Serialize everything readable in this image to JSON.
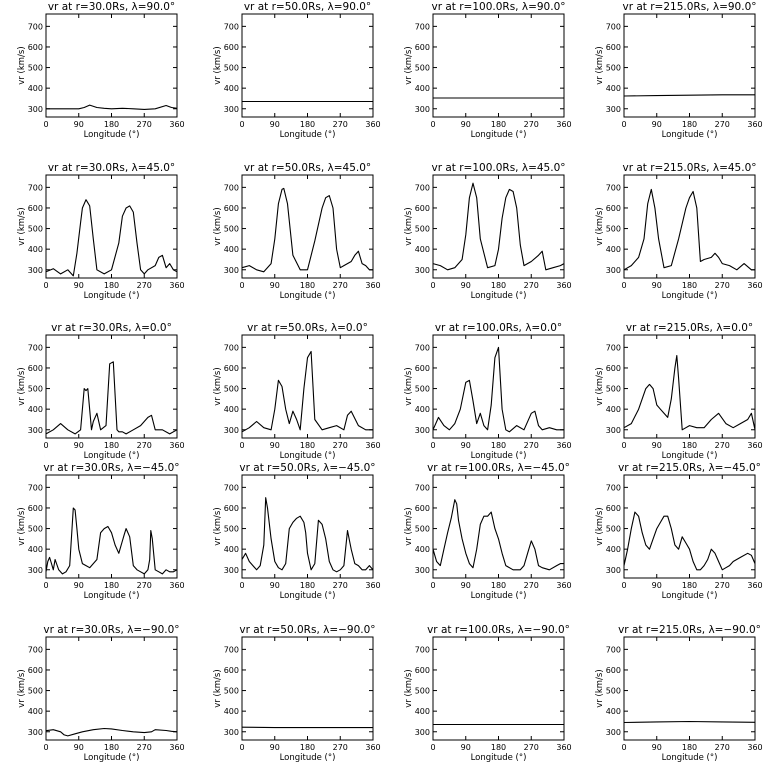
{
  "chart_data": {
    "type": "line",
    "xlabel": "Longitude (°)",
    "ylabel": "vr (km/s)",
    "xlim": [
      0,
      360
    ],
    "ylim": [
      260,
      760
    ],
    "xticks": [
      "0",
      "90",
      "180",
      "270",
      "360"
    ],
    "yticks": [
      "300",
      "400",
      "500",
      "600",
      "700"
    ],
    "grid": false,
    "panels": [
      {
        "title": "vr at r=30.0Rs, λ=90.0°",
        "x": [
          0,
          45,
          90,
          105,
          120,
          140,
          160,
          180,
          210,
          240,
          270,
          300,
          330,
          345,
          360
        ],
        "y": [
          300,
          300,
          300,
          306,
          318,
          306,
          302,
          300,
          302,
          300,
          297,
          300,
          316,
          306,
          302
        ]
      },
      {
        "title": "vr at r=50.0Rs, λ=90.0°",
        "x": [
          0,
          90,
          180,
          270,
          360
        ],
        "y": [
          335,
          335,
          335,
          335,
          335
        ]
      },
      {
        "title": "vr at r=100.0Rs, λ=90.0°",
        "x": [
          0,
          90,
          180,
          270,
          360
        ],
        "y": [
          352,
          352,
          352,
          352,
          352
        ]
      },
      {
        "title": "vr at r=215.0Rs, λ=90.0°",
        "x": [
          0,
          90,
          180,
          270,
          360
        ],
        "y": [
          362,
          364,
          366,
          368,
          368
        ]
      },
      {
        "title": "vr at r=30.0Rs, λ=45.0°",
        "x": [
          0,
          20,
          40,
          60,
          75,
          85,
          95,
          100,
          110,
          120,
          130,
          140,
          160,
          180,
          200,
          210,
          220,
          230,
          240,
          250,
          260,
          270,
          280,
          300,
          310,
          320,
          330,
          340,
          350,
          360
        ],
        "y": [
          290,
          305,
          280,
          300,
          270,
          380,
          530,
          600,
          640,
          610,
          450,
          300,
          280,
          300,
          430,
          560,
          600,
          610,
          580,
          430,
          300,
          280,
          300,
          320,
          360,
          370,
          310,
          330,
          300,
          290
        ]
      },
      {
        "title": "vr at r=50.0Rs, λ=45.0°",
        "x": [
          0,
          20,
          40,
          60,
          80,
          90,
          100,
          110,
          115,
          125,
          140,
          160,
          180,
          200,
          220,
          230,
          240,
          250,
          260,
          270,
          280,
          300,
          310,
          320,
          330,
          340,
          350,
          360
        ],
        "y": [
          310,
          320,
          300,
          290,
          330,
          450,
          620,
          690,
          695,
          620,
          370,
          300,
          300,
          440,
          600,
          650,
          660,
          600,
          400,
          310,
          320,
          340,
          370,
          390,
          330,
          320,
          300,
          300
        ]
      },
      {
        "title": "vr at r=100.0Rs, λ=45.0°",
        "x": [
          0,
          20,
          40,
          60,
          80,
          90,
          100,
          110,
          120,
          130,
          150,
          170,
          180,
          190,
          200,
          210,
          220,
          230,
          240,
          250,
          270,
          290,
          300,
          310,
          330,
          350,
          360
        ],
        "y": [
          330,
          320,
          300,
          310,
          350,
          470,
          650,
          720,
          650,
          450,
          310,
          320,
          400,
          550,
          650,
          690,
          680,
          600,
          420,
          320,
          340,
          370,
          390,
          300,
          310,
          320,
          330
        ]
      },
      {
        "title": "vr at r=215.0Rs, λ=45.0°",
        "x": [
          0,
          20,
          40,
          55,
          65,
          75,
          85,
          95,
          110,
          130,
          150,
          170,
          180,
          190,
          200,
          210,
          220,
          240,
          250,
          260,
          270,
          290,
          310,
          330,
          350,
          360
        ],
        "y": [
          300,
          320,
          360,
          450,
          620,
          690,
          600,
          450,
          310,
          320,
          450,
          600,
          650,
          680,
          600,
          340,
          350,
          360,
          380,
          360,
          330,
          320,
          300,
          330,
          300,
          300
        ]
      },
      {
        "title": "vr at r=30.0Rs, λ=0.0°",
        "x": [
          0,
          20,
          40,
          60,
          80,
          95,
          105,
          110,
          115,
          125,
          130,
          140,
          150,
          165,
          175,
          185,
          195,
          200,
          210,
          220,
          240,
          260,
          280,
          290,
          300,
          320,
          340,
          360
        ],
        "y": [
          280,
          300,
          330,
          300,
          280,
          300,
          500,
          490,
          500,
          300,
          340,
          380,
          300,
          320,
          620,
          630,
          300,
          290,
          290,
          280,
          300,
          320,
          360,
          370,
          300,
          300,
          280,
          300
        ]
      },
      {
        "title": "vr at r=50.0Rs, λ=0.0°",
        "x": [
          0,
          20,
          40,
          60,
          80,
          90,
          100,
          110,
          120,
          130,
          140,
          150,
          160,
          170,
          180,
          190,
          200,
          220,
          240,
          260,
          280,
          290,
          300,
          320,
          340,
          360
        ],
        "y": [
          290,
          310,
          340,
          310,
          300,
          400,
          540,
          510,
          400,
          330,
          390,
          350,
          300,
          500,
          650,
          680,
          350,
          300,
          310,
          320,
          300,
          370,
          390,
          320,
          300,
          300
        ]
      },
      {
        "title": "vr at r=100.0Rs, λ=0.0°",
        "x": [
          0,
          15,
          30,
          45,
          60,
          75,
          90,
          100,
          110,
          120,
          130,
          140,
          150,
          160,
          170,
          180,
          190,
          200,
          210,
          230,
          250,
          270,
          280,
          290,
          300,
          320,
          340,
          360
        ],
        "y": [
          300,
          360,
          320,
          300,
          330,
          400,
          530,
          540,
          440,
          330,
          380,
          320,
          300,
          420,
          650,
          700,
          400,
          300,
          290,
          320,
          300,
          380,
          390,
          320,
          300,
          310,
          300,
          300
        ]
      },
      {
        "title": "vr at r=215.0Rs, λ=0.0°",
        "x": [
          0,
          20,
          40,
          60,
          70,
          80,
          90,
          100,
          110,
          120,
          130,
          140,
          145,
          150,
          160,
          170,
          180,
          200,
          220,
          240,
          260,
          280,
          300,
          320,
          340,
          350,
          360
        ],
        "y": [
          310,
          330,
          400,
          500,
          520,
          500,
          420,
          400,
          380,
          360,
          450,
          600,
          660,
          550,
          300,
          310,
          320,
          310,
          310,
          350,
          380,
          330,
          310,
          330,
          350,
          380,
          300
        ]
      },
      {
        "title": "vr at r=30.0Rs, λ=−45.0°",
        "x": [
          0,
          5,
          10,
          15,
          20,
          25,
          35,
          45,
          55,
          65,
          75,
          80,
          85,
          90,
          100,
          110,
          120,
          140,
          150,
          160,
          170,
          180,
          190,
          200,
          210,
          215,
          220,
          230,
          240,
          250,
          260,
          270,
          280,
          285,
          288,
          292,
          300,
          310,
          320,
          330,
          340,
          350,
          360
        ],
        "y": [
          290,
          340,
          360,
          330,
          300,
          350,
          300,
          280,
          290,
          320,
          600,
          590,
          500,
          400,
          330,
          320,
          310,
          350,
          480,
          500,
          510,
          480,
          420,
          380,
          440,
          470,
          500,
          460,
          320,
          300,
          290,
          280,
          300,
          350,
          490,
          450,
          300,
          290,
          280,
          300,
          290,
          290,
          300
        ]
      },
      {
        "title": "vr at r=50.0Rs, λ=−45.0°",
        "x": [
          0,
          10,
          20,
          30,
          40,
          50,
          60,
          65,
          70,
          80,
          90,
          100,
          110,
          120,
          130,
          140,
          150,
          160,
          170,
          175,
          180,
          190,
          200,
          210,
          220,
          230,
          240,
          250,
          260,
          270,
          280,
          290,
          300,
          310,
          320,
          330,
          340,
          350,
          360
        ],
        "y": [
          350,
          380,
          340,
          320,
          300,
          320,
          420,
          650,
          600,
          450,
          340,
          310,
          300,
          330,
          500,
          530,
          550,
          560,
          530,
          480,
          380,
          300,
          330,
          540,
          520,
          450,
          340,
          300,
          290,
          300,
          320,
          490,
          400,
          330,
          320,
          300,
          300,
          320,
          300
        ]
      },
      {
        "title": "vr at r=100.0Rs, λ=−45.0°",
        "x": [
          0,
          10,
          20,
          30,
          40,
          50,
          60,
          65,
          70,
          80,
          90,
          100,
          110,
          120,
          130,
          140,
          150,
          160,
          170,
          180,
          190,
          200,
          220,
          240,
          250,
          260,
          270,
          280,
          290,
          300,
          320,
          340,
          350,
          360
        ],
        "y": [
          400,
          340,
          320,
          400,
          480,
          550,
          640,
          620,
          540,
          450,
          380,
          330,
          310,
          400,
          520,
          560,
          560,
          580,
          500,
          450,
          380,
          320,
          300,
          300,
          320,
          380,
          440,
          400,
          320,
          310,
          300,
          320,
          330,
          330
        ]
      },
      {
        "title": "vr at r=215.0Rs, λ=−45.0°",
        "x": [
          0,
          10,
          20,
          30,
          40,
          50,
          60,
          70,
          80,
          90,
          100,
          110,
          120,
          130,
          140,
          150,
          160,
          170,
          180,
          190,
          200,
          210,
          220,
          230,
          240,
          250,
          260,
          270,
          280,
          290,
          300,
          320,
          340,
          350,
          360
        ],
        "y": [
          320,
          400,
          500,
          580,
          560,
          480,
          420,
          400,
          450,
          500,
          530,
          560,
          560,
          500,
          420,
          400,
          460,
          430,
          400,
          340,
          300,
          300,
          320,
          350,
          400,
          380,
          340,
          300,
          310,
          320,
          340,
          360,
          380,
          370,
          330
        ]
      },
      {
        "title": "vr at r=30.0Rs, λ=−90.0°",
        "x": [
          0,
          20,
          40,
          50,
          60,
          80,
          100,
          130,
          160,
          180,
          210,
          240,
          270,
          290,
          300,
          330,
          345,
          360
        ],
        "y": [
          305,
          310,
          300,
          285,
          280,
          290,
          300,
          310,
          316,
          314,
          306,
          300,
          296,
          300,
          310,
          306,
          302,
          300
        ]
      },
      {
        "title": "vr at r=50.0Rs, λ=−90.0°",
        "x": [
          0,
          90,
          180,
          270,
          360
        ],
        "y": [
          322,
          320,
          320,
          320,
          320
        ]
      },
      {
        "title": "vr at r=100.0Rs, λ=−90.0°",
        "x": [
          0,
          90,
          180,
          270,
          360
        ],
        "y": [
          335,
          335,
          335,
          335,
          335
        ]
      },
      {
        "title": "vr at r=215.0Rs, λ=−90.0°",
        "x": [
          0,
          90,
          180,
          270,
          360
        ],
        "y": [
          345,
          348,
          350,
          348,
          346
        ]
      }
    ]
  }
}
